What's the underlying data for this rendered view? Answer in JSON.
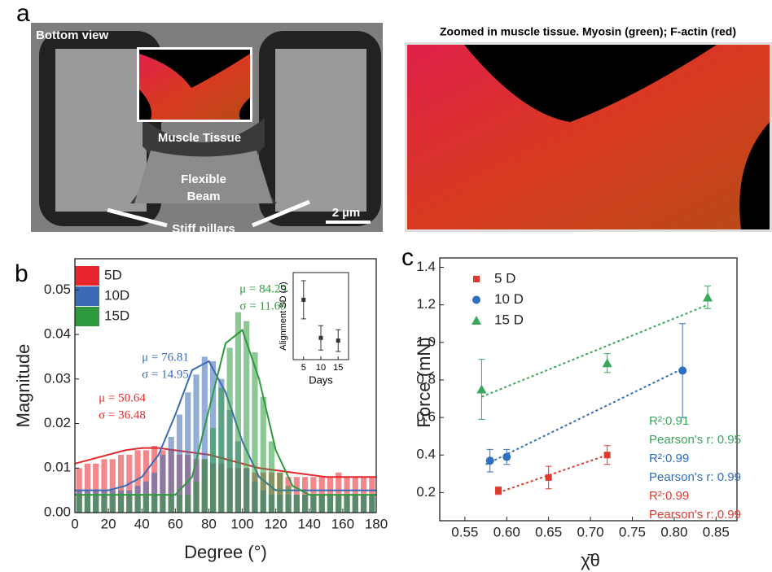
{
  "panel_a": {
    "label": "a",
    "bottom_view": "Bottom view",
    "muscle_tissue": "Muscle Tissue",
    "flexible_beam": [
      "Flexible",
      "Beam"
    ],
    "scale_bar": "2 µm",
    "stiff_pillars": "Stiff pillars",
    "zoom_title": "Zoomed in muscle tissue. Myosin (green); F-actin (red)"
  },
  "chart_data": [
    {
      "type": "histogram",
      "panel_label": "b",
      "x_label": "Degree (°)",
      "y_label": "Magnitude",
      "bins": [
        0,
        5,
        10,
        15,
        20,
        25,
        30,
        35,
        40,
        45,
        50,
        55,
        60,
        65,
        70,
        75,
        80,
        85,
        90,
        95,
        100,
        105,
        110,
        115,
        120,
        125,
        130,
        135,
        140,
        145,
        150,
        155,
        160,
        165,
        170,
        175,
        180
      ],
      "xlim": [
        0,
        180
      ],
      "xticks": [
        0,
        20,
        40,
        60,
        80,
        100,
        120,
        140,
        160,
        180
      ],
      "ylim": [
        0,
        0.057
      ],
      "yticks": [
        {
          "value": 0,
          "label": "0.00"
        },
        0.01,
        0.02,
        0.03,
        0.04,
        0.05
      ],
      "legend_position": "upper left",
      "series": [
        {
          "name": "5D",
          "color": "#e8262b",
          "values": [
            0.01,
            0.011,
            0.011,
            0.012,
            0.012,
            0.013,
            0.013,
            0.014,
            0.014,
            0.015,
            0.014,
            0.014,
            0.013,
            0.013,
            0.012,
            0.012,
            0.011,
            0.011,
            0.01,
            0.01,
            0.01,
            0.009,
            0.009,
            0.009,
            0.009,
            0.008,
            0.008,
            0.008,
            0.008,
            0.008,
            0.008,
            0.009,
            0.008,
            0.008,
            0.008,
            0.008
          ],
          "fit": {
            "x": [
              0,
              10,
              20,
              30,
              40,
              50,
              60,
              70,
              80,
              90,
              100,
              110,
              120,
              130,
              140,
              150,
              160,
              170,
              180
            ],
            "values": [
              0.011,
              0.012,
              0.013,
              0.014,
              0.0145,
              0.0145,
              0.014,
              0.0135,
              0.013,
              0.012,
              0.011,
              0.01,
              0.0095,
              0.009,
              0.0085,
              0.008,
              0.008,
              0.008,
              0.008
            ]
          },
          "annotation": [
            "μ = 50.64",
            "σ = 36.48"
          ]
        },
        {
          "name": "10D",
          "color": "#3b6bb5",
          "values": [
            0.005,
            0.005,
            0.005,
            0.005,
            0.005,
            0.005,
            0.005,
            0.006,
            0.007,
            0.009,
            0.013,
            0.017,
            0.022,
            0.027,
            0.031,
            0.035,
            0.034,
            0.03,
            0.023,
            0.016,
            0.01,
            0.007,
            0.005,
            0.004,
            0.004,
            0.004,
            0.004,
            0.004,
            0.004,
            0.004,
            0.004,
            0.004,
            0.004,
            0.004,
            0.004,
            0.004
          ],
          "fit": {
            "x": [
              0,
              10,
              20,
              30,
              40,
              50,
              60,
              70,
              80,
              90,
              100,
              110,
              120,
              130,
              140,
              150,
              160,
              170,
              180
            ],
            "values": [
              0.005,
              0.005,
              0.005,
              0.006,
              0.008,
              0.013,
              0.022,
              0.032,
              0.034,
              0.027,
              0.016,
              0.008,
              0.005,
              0.005,
              0.005,
              0.005,
              0.005,
              0.005,
              0.005
            ]
          },
          "annotation": [
            "μ = 76.81",
            "σ = 14.95"
          ]
        },
        {
          "name": "15D",
          "color": "#2e9a3e",
          "values": [
            0.004,
            0.004,
            0.004,
            0.004,
            0.004,
            0.004,
            0.004,
            0.004,
            0.004,
            0.004,
            0.004,
            0.004,
            0.004,
            0.004,
            0.007,
            0.012,
            0.019,
            0.028,
            0.037,
            0.045,
            0.043,
            0.036,
            0.026,
            0.016,
            0.009,
            0.006,
            0.004,
            0.004,
            0.004,
            0.004,
            0.004,
            0.004,
            0.004,
            0.004,
            0.004,
            0.004
          ],
          "fit": {
            "x": [
              0,
              10,
              20,
              30,
              40,
              50,
              60,
              70,
              80,
              90,
              100,
              110,
              120,
              130,
              140,
              150,
              160,
              170,
              180
            ],
            "values": [
              0.004,
              0.004,
              0.004,
              0.004,
              0.004,
              0.004,
              0.004,
              0.008,
              0.023,
              0.038,
              0.041,
              0.03,
              0.014,
              0.006,
              0.004,
              0.004,
              0.004,
              0.004,
              0.004
            ]
          },
          "annotation": [
            "μ = 84.29",
            "σ = 11.69"
          ]
        }
      ],
      "inset": {
        "type": "scatter",
        "x_label": "Days",
        "y_label": "Alignment SD (σ)",
        "xlim": [
          2,
          18
        ],
        "xticks": [
          5,
          10,
          15
        ],
        "ylim": [
          10,
          42
        ],
        "x": [
          5,
          10,
          15
        ],
        "values": [
          32,
          18,
          17
        ],
        "errors": [
          7,
          4.5,
          4
        ],
        "color": "#333333"
      }
    },
    {
      "type": "scatter",
      "panel_label": "c",
      "x_label": "χ̄θ",
      "y_label": "Force (mN)",
      "xlim": [
        0.52,
        0.875
      ],
      "xticks": [
        0.55,
        {
          "value": 0.6,
          "label": "0.60"
        },
        0.65,
        {
          "value": 0.7,
          "label": "0.70"
        },
        0.75,
        {
          "value": 0.8,
          "label": "0.80"
        },
        0.85
      ],
      "ylim": [
        0.05,
        1.45
      ],
      "yticks": [
        0.2,
        0.4,
        0.6,
        0.8,
        {
          "value": 1,
          "label": "1.0"
        },
        1.2,
        1.4
      ],
      "legend_position": "upper left",
      "series": [
        {
          "name": "5 D",
          "color": "#e03a2f",
          "marker": "square",
          "x": [
            0.59,
            0.65,
            0.72
          ],
          "values": [
            0.21,
            0.28,
            0.4
          ],
          "errors": [
            0.02,
            0.06,
            0.05
          ],
          "fit": {
            "x": [
              0.59,
              0.72
            ],
            "values": [
              0.2,
              0.4
            ]
          },
          "annotation": [
            "R²:0.99",
            "Pearson's r: 0.99"
          ]
        },
        {
          "name": "10 D",
          "color": "#2f6fc0",
          "marker": "circle",
          "x": [
            0.58,
            0.6,
            0.81
          ],
          "values": [
            0.37,
            0.39,
            0.85
          ],
          "errors": [
            0.06,
            0.04,
            0.25
          ],
          "fit": {
            "x": [
              0.575,
              0.81
            ],
            "values": [
              0.35,
              0.86
            ]
          },
          "annotation": [
            "R²:0.99",
            "Pearson's r: 0.99"
          ]
        },
        {
          "name": "15 D",
          "color": "#3aa65a",
          "marker": "triangle",
          "x": [
            0.57,
            0.72,
            0.84
          ],
          "values": [
            0.75,
            0.89,
            1.24
          ],
          "errors": [
            0.16,
            0.05,
            0.06
          ],
          "fit": {
            "x": [
              0.57,
              0.84
            ],
            "values": [
              0.71,
              1.2
            ]
          },
          "annotation": [
            "R²:0.91",
            "Pearson's r: 0.95"
          ]
        }
      ]
    }
  ]
}
